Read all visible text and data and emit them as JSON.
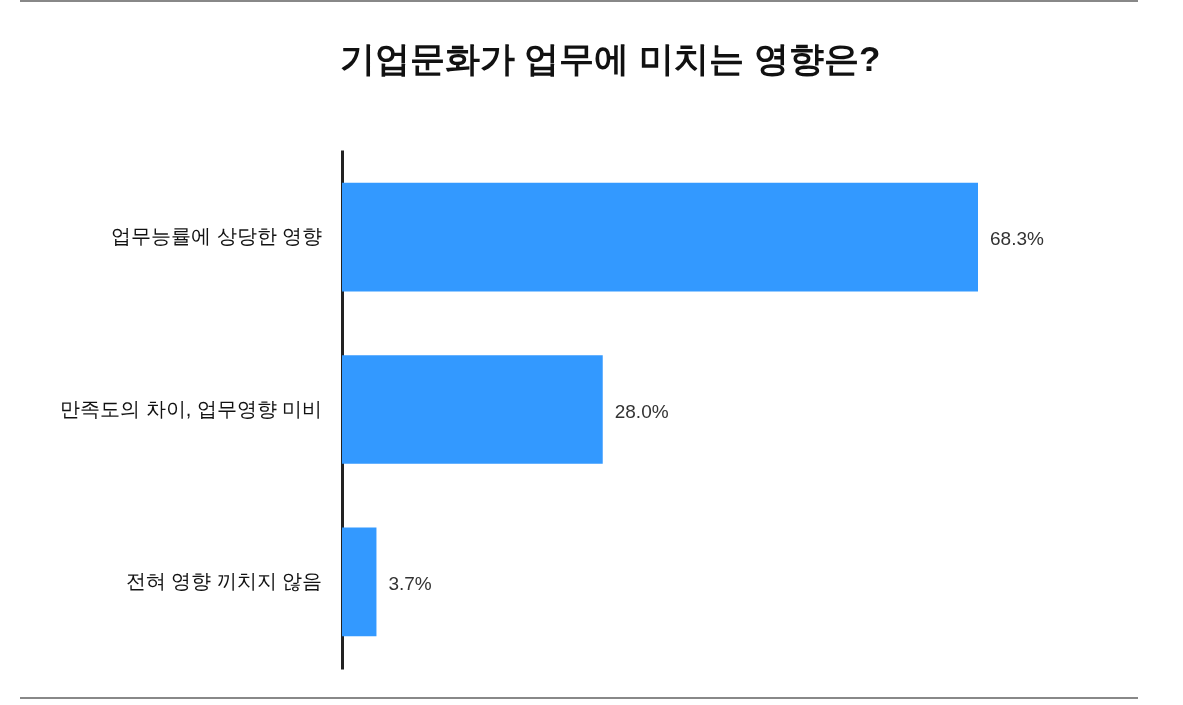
{
  "chart_data": {
    "type": "bar",
    "orientation": "horizontal",
    "title": "기업문화가 업무에 미치는 영향은?",
    "categories": [
      "업무능률에 상당한 영향",
      "만족도의 차이, 업무영향 미비",
      "전혀 영향 끼치지 않음"
    ],
    "values": [
      68.3,
      28.0,
      3.7
    ],
    "color": "#3399ff",
    "value_labels": [
      "68.3%",
      "28.0%",
      "3.7%"
    ],
    "tick_labels": "y"
  }
}
